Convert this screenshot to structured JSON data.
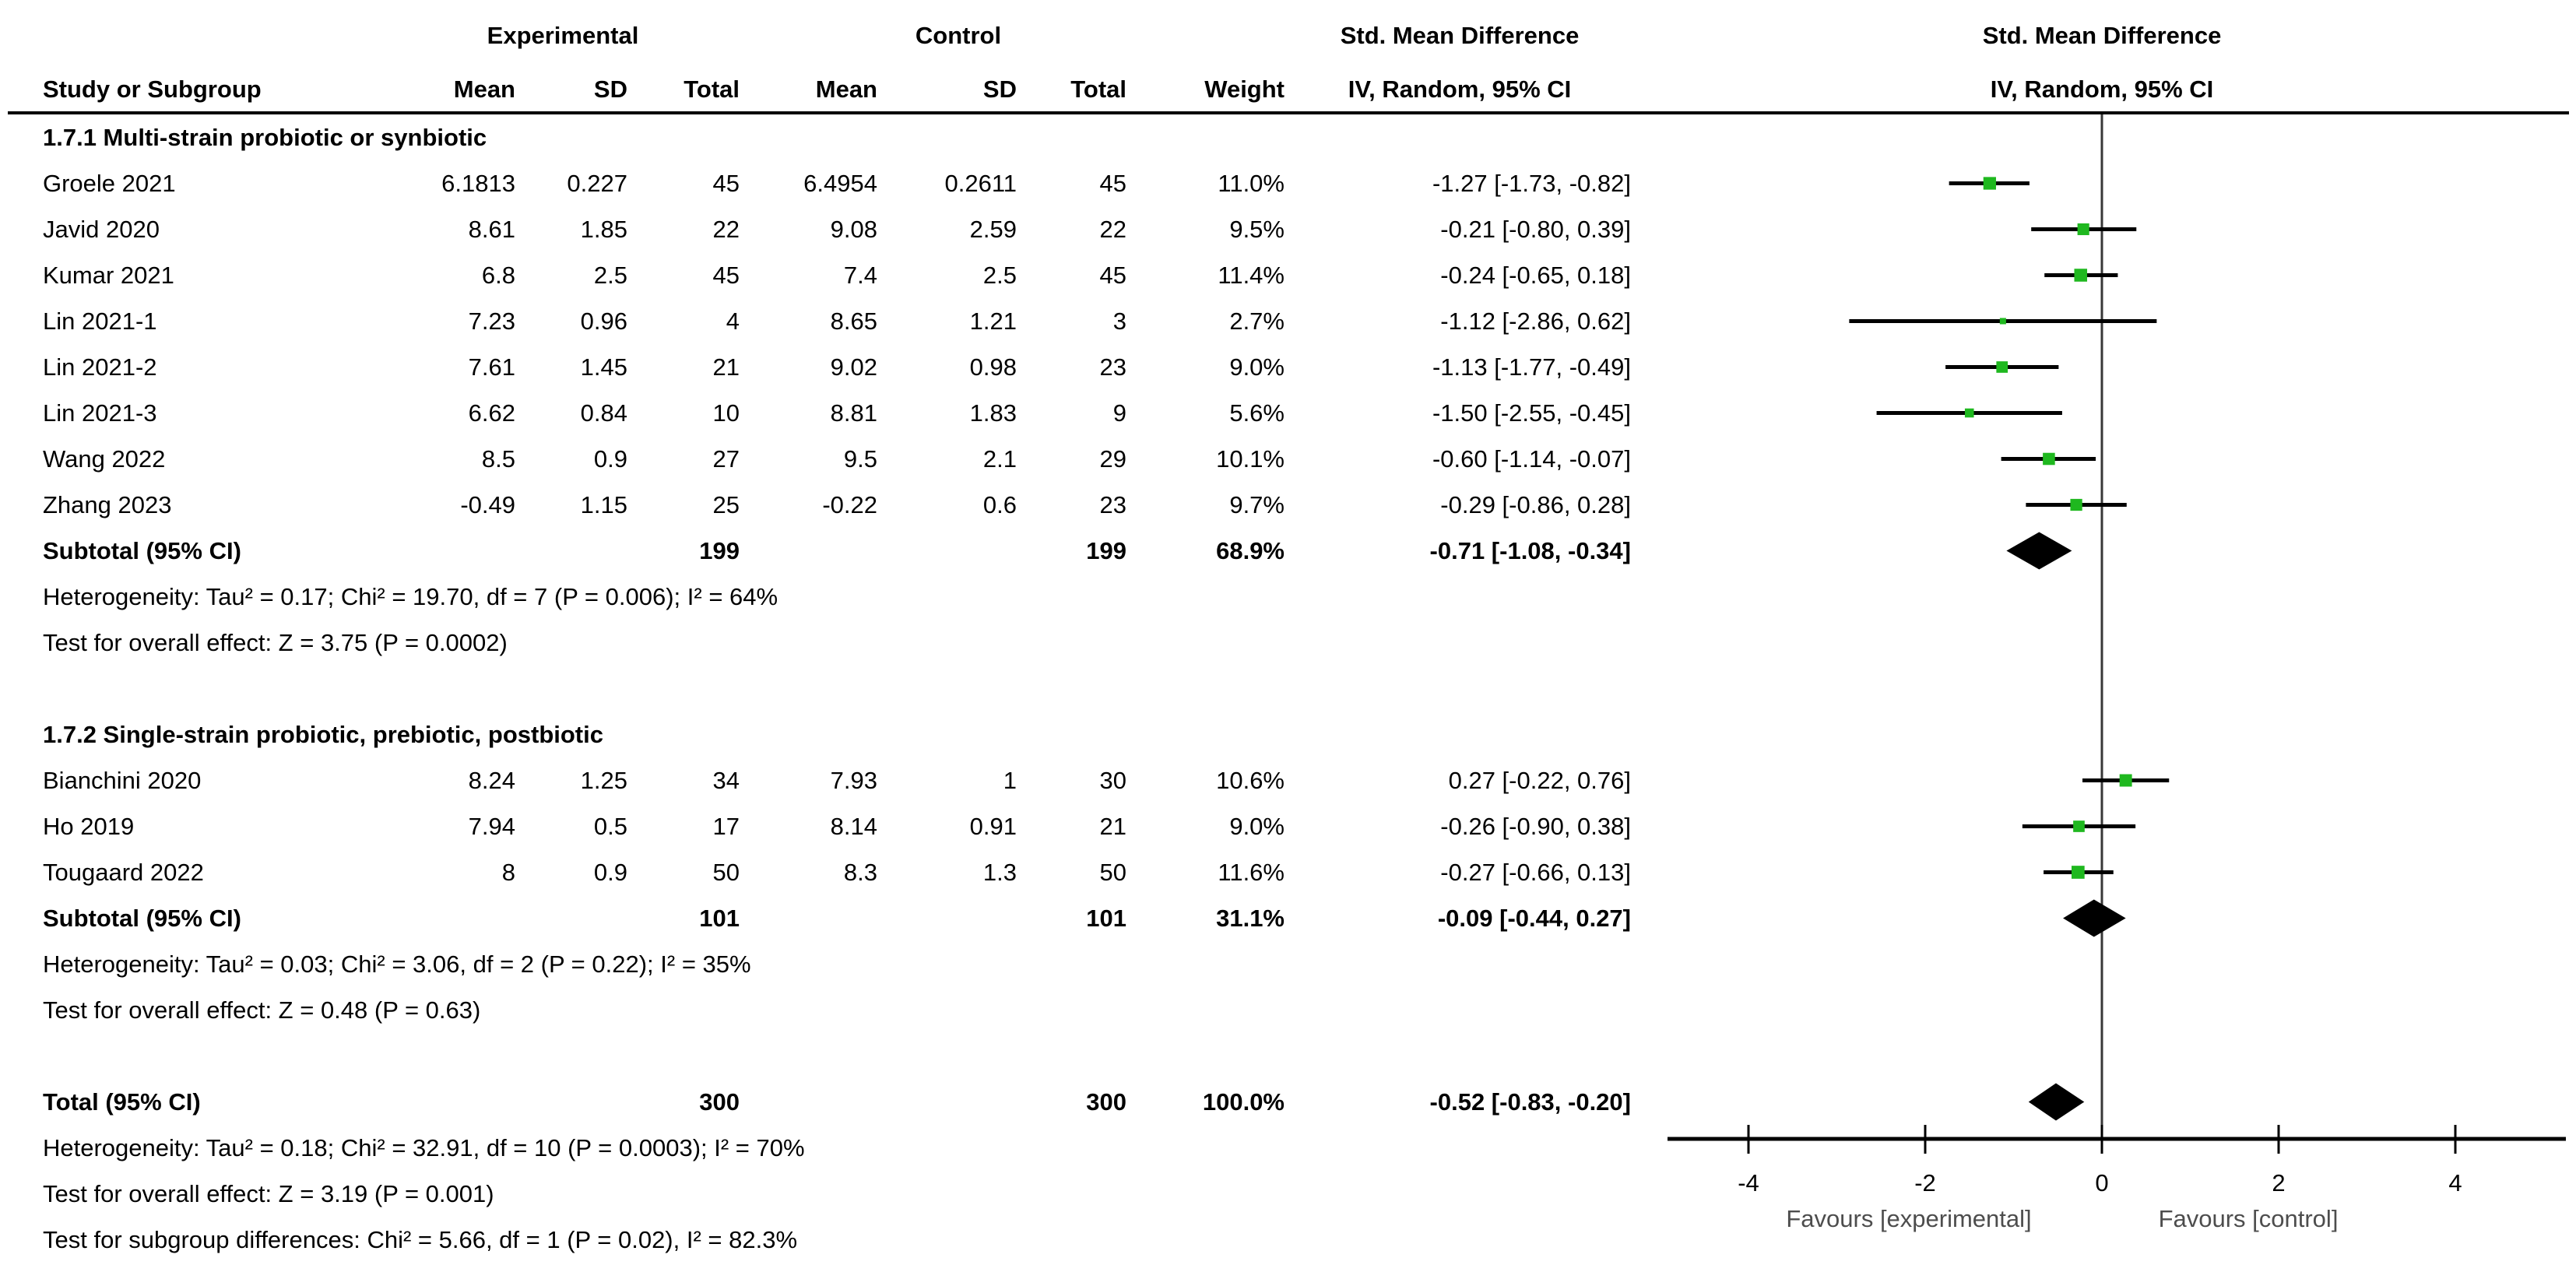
{
  "header": {
    "experimental": "Experimental",
    "control": "Control",
    "smd_text_col": "Std. Mean Difference",
    "smd_plot_col": "Std. Mean Difference",
    "study": "Study or Subgroup",
    "mean": "Mean",
    "sd": "SD",
    "total": "Total",
    "weight": "Weight",
    "method_text_col": "IV, Random, 95% CI",
    "method_plot_col": "IV, Random, 95% CI"
  },
  "colors": {
    "marker_green": "#1fb81f",
    "diamond_black": "#000000",
    "line_black": "#000000",
    "zero_line_gray": "#383838",
    "favours_gray": "#4d4d4d"
  },
  "chart_data": {
    "type": "scatter",
    "variant": "forest-plot-meta-analysis",
    "effect_measure": "Std. Mean Difference",
    "method": "IV, Random, 95% CI",
    "axis": {
      "min": -5,
      "max": 5.2,
      "ticks": [
        -4,
        -2,
        0,
        2,
        4
      ],
      "tick_labels": [
        "-4",
        "-2",
        "0",
        "2",
        "4"
      ],
      "favours_left": "Favours [experimental]",
      "favours_right": "Favours [control]"
    },
    "groups": [
      {
        "label": "1.7.1 Multi-strain probiotic or synbiotic",
        "studies": [
          {
            "name": "Groele 2021",
            "mean_e": "6.1813",
            "sd_e": "0.227",
            "n_e": "45",
            "mean_c": "6.4954",
            "sd_c": "0.2611",
            "n_c": "45",
            "weight": "11.0%",
            "ci": "-1.27 [-1.73, -0.82]",
            "est": -1.27,
            "lo": -1.73,
            "hi": -0.82,
            "w": 11.0
          },
          {
            "name": "Javid 2020",
            "mean_e": "8.61",
            "sd_e": "1.85",
            "n_e": "22",
            "mean_c": "9.08",
            "sd_c": "2.59",
            "n_c": "22",
            "weight": "9.5%",
            "ci": "-0.21 [-0.80, 0.39]",
            "est": -0.21,
            "lo": -0.8,
            "hi": 0.39,
            "w": 9.5
          },
          {
            "name": "Kumar 2021",
            "mean_e": "6.8",
            "sd_e": "2.5",
            "n_e": "45",
            "mean_c": "7.4",
            "sd_c": "2.5",
            "n_c": "45",
            "weight": "11.4%",
            "ci": "-0.24 [-0.65, 0.18]",
            "est": -0.24,
            "lo": -0.65,
            "hi": 0.18,
            "w": 11.4
          },
          {
            "name": "Lin 2021-1",
            "mean_e": "7.23",
            "sd_e": "0.96",
            "n_e": "4",
            "mean_c": "8.65",
            "sd_c": "1.21",
            "n_c": "3",
            "weight": "2.7%",
            "ci": "-1.12 [-2.86, 0.62]",
            "est": -1.12,
            "lo": -2.86,
            "hi": 0.62,
            "w": 2.7
          },
          {
            "name": "Lin 2021-2",
            "mean_e": "7.61",
            "sd_e": "1.45",
            "n_e": "21",
            "mean_c": "9.02",
            "sd_c": "0.98",
            "n_c": "23",
            "weight": "9.0%",
            "ci": "-1.13 [-1.77, -0.49]",
            "est": -1.13,
            "lo": -1.77,
            "hi": -0.49,
            "w": 9.0
          },
          {
            "name": "Lin 2021-3",
            "mean_e": "6.62",
            "sd_e": "0.84",
            "n_e": "10",
            "mean_c": "8.81",
            "sd_c": "1.83",
            "n_c": "9",
            "weight": "5.6%",
            "ci": "-1.50 [-2.55, -0.45]",
            "est": -1.5,
            "lo": -2.55,
            "hi": -0.45,
            "w": 5.6
          },
          {
            "name": "Wang 2022",
            "mean_e": "8.5",
            "sd_e": "0.9",
            "n_e": "27",
            "mean_c": "9.5",
            "sd_c": "2.1",
            "n_c": "29",
            "weight": "10.1%",
            "ci": "-0.60 [-1.14, -0.07]",
            "est": -0.6,
            "lo": -1.14,
            "hi": -0.07,
            "w": 10.1
          },
          {
            "name": "Zhang 2023",
            "mean_e": "-0.49",
            "sd_e": "1.15",
            "n_e": "25",
            "mean_c": "-0.22",
            "sd_c": "0.6",
            "n_c": "23",
            "weight": "9.7%",
            "ci": "-0.29 [-0.86, 0.28]",
            "est": -0.29,
            "lo": -0.86,
            "hi": 0.28,
            "w": 9.7
          }
        ],
        "subtotal": {
          "label": "Subtotal (95% CI)",
          "n_e": "199",
          "n_c": "199",
          "weight": "68.9%",
          "ci": "-0.71 [-1.08, -0.34]",
          "est": -0.71,
          "lo": -1.08,
          "hi": -0.34
        },
        "heterogeneity": "Heterogeneity: Tau² = 0.17; Chi² = 19.70, df = 7 (P = 0.006); I² = 64%",
        "overall_effect": "Test for overall effect: Z = 3.75 (P = 0.0002)"
      },
      {
        "label": "1.7.2 Single-strain probiotic, prebiotic, postbiotic",
        "studies": [
          {
            "name": "Bianchini 2020",
            "mean_e": "8.24",
            "sd_e": "1.25",
            "n_e": "34",
            "mean_c": "7.93",
            "sd_c": "1",
            "n_c": "30",
            "weight": "10.6%",
            "ci": "0.27 [-0.22, 0.76]",
            "est": 0.27,
            "lo": -0.22,
            "hi": 0.76,
            "w": 10.6
          },
          {
            "name": "Ho 2019",
            "mean_e": "7.94",
            "sd_e": "0.5",
            "n_e": "17",
            "mean_c": "8.14",
            "sd_c": "0.91",
            "n_c": "21",
            "weight": "9.0%",
            "ci": "-0.26 [-0.90, 0.38]",
            "est": -0.26,
            "lo": -0.9,
            "hi": 0.38,
            "w": 9.0
          },
          {
            "name": "Tougaard 2022",
            "mean_e": "8",
            "sd_e": "0.9",
            "n_e": "50",
            "mean_c": "8.3",
            "sd_c": "1.3",
            "n_c": "50",
            "weight": "11.6%",
            "ci": "-0.27 [-0.66, 0.13]",
            "est": -0.27,
            "lo": -0.66,
            "hi": 0.13,
            "w": 11.6
          }
        ],
        "subtotal": {
          "label": "Subtotal (95% CI)",
          "n_e": "101",
          "n_c": "101",
          "weight": "31.1%",
          "ci": "-0.09 [-0.44, 0.27]",
          "est": -0.09,
          "lo": -0.44,
          "hi": 0.27
        },
        "heterogeneity": "Heterogeneity: Tau² = 0.03; Chi² = 3.06, df = 2 (P = 0.22); I² = 35%",
        "overall_effect": "Test for overall effect: Z = 0.48 (P = 0.63)"
      }
    ],
    "total": {
      "label": "Total (95% CI)",
      "n_e": "300",
      "n_c": "300",
      "weight": "100.0%",
      "ci": "-0.52 [-0.83, -0.20]",
      "est": -0.52,
      "lo": -0.83,
      "hi": -0.2
    },
    "total_heterogeneity": "Heterogeneity: Tau² = 0.18; Chi² = 32.91, df = 10 (P = 0.0003); I² = 70%",
    "total_overall_effect": "Test for overall effect: Z = 3.19 (P = 0.001)",
    "subgroup_differences": "Test for subgroup differences: Chi² = 5.66, df = 1 (P = 0.02), I² = 82.3%"
  }
}
